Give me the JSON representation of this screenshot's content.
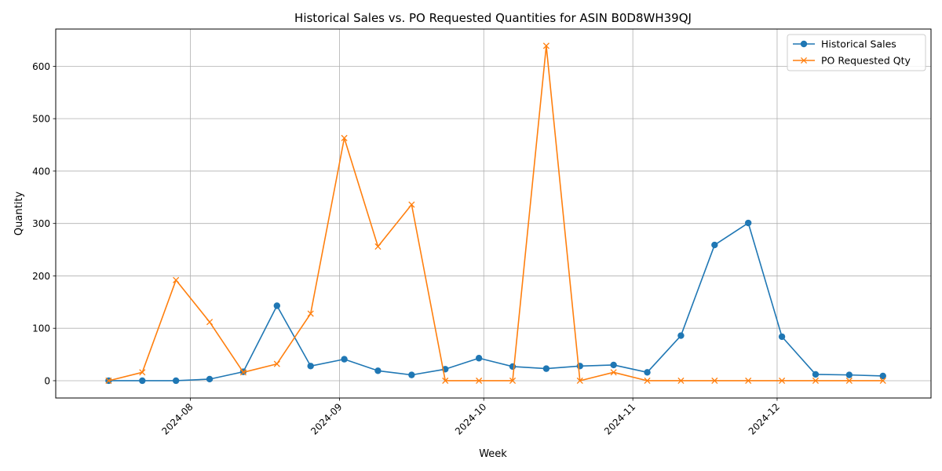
{
  "chart_data": {
    "type": "line",
    "title": "Historical Sales vs. PO Requested Quantities for ASIN B0D8WH39QJ",
    "xlabel": "Week",
    "ylabel": "Quantity",
    "x": [
      "2024-07-15",
      "2024-07-22",
      "2024-07-29",
      "2024-08-05",
      "2024-08-12",
      "2024-08-19",
      "2024-08-26",
      "2024-09-02",
      "2024-09-09",
      "2024-09-16",
      "2024-09-23",
      "2024-09-30",
      "2024-10-07",
      "2024-10-14",
      "2024-10-21",
      "2024-10-28",
      "2024-11-04",
      "2024-11-11",
      "2024-11-18",
      "2024-11-25",
      "2024-12-02",
      "2024-12-09",
      "2024-12-16",
      "2024-12-23"
    ],
    "x_ticks": [
      "2024-08-01",
      "2024-09-01",
      "2024-10-01",
      "2024-11-01",
      "2024-12-01"
    ],
    "x_tick_labels": [
      "2024-08",
      "2024-09",
      "2024-10",
      "2024-11",
      "2024-12"
    ],
    "xlim": [
      "2024-07-04",
      "2025-01-02"
    ],
    "y_ticks": [
      0,
      100,
      200,
      300,
      400,
      500,
      600
    ],
    "ylim": [
      -33,
      671
    ],
    "grid": true,
    "legend_position": "top-right",
    "series": [
      {
        "name": "Historical Sales",
        "color": "#1f77b4",
        "marker": "circle",
        "values": [
          0,
          0,
          0,
          3,
          17,
          143,
          28,
          41,
          19,
          11,
          22,
          43,
          27,
          23,
          28,
          30,
          16,
          86,
          259,
          301,
          84,
          12,
          11,
          9
        ]
      },
      {
        "name": "PO Requested Qty",
        "color": "#ff7f0e",
        "marker": "x",
        "values": [
          0,
          16,
          192,
          112,
          16,
          32,
          128,
          463,
          256,
          336,
          0,
          0,
          0,
          639,
          0,
          16,
          0,
          0,
          0,
          0,
          0,
          0,
          0,
          0
        ]
      }
    ]
  }
}
